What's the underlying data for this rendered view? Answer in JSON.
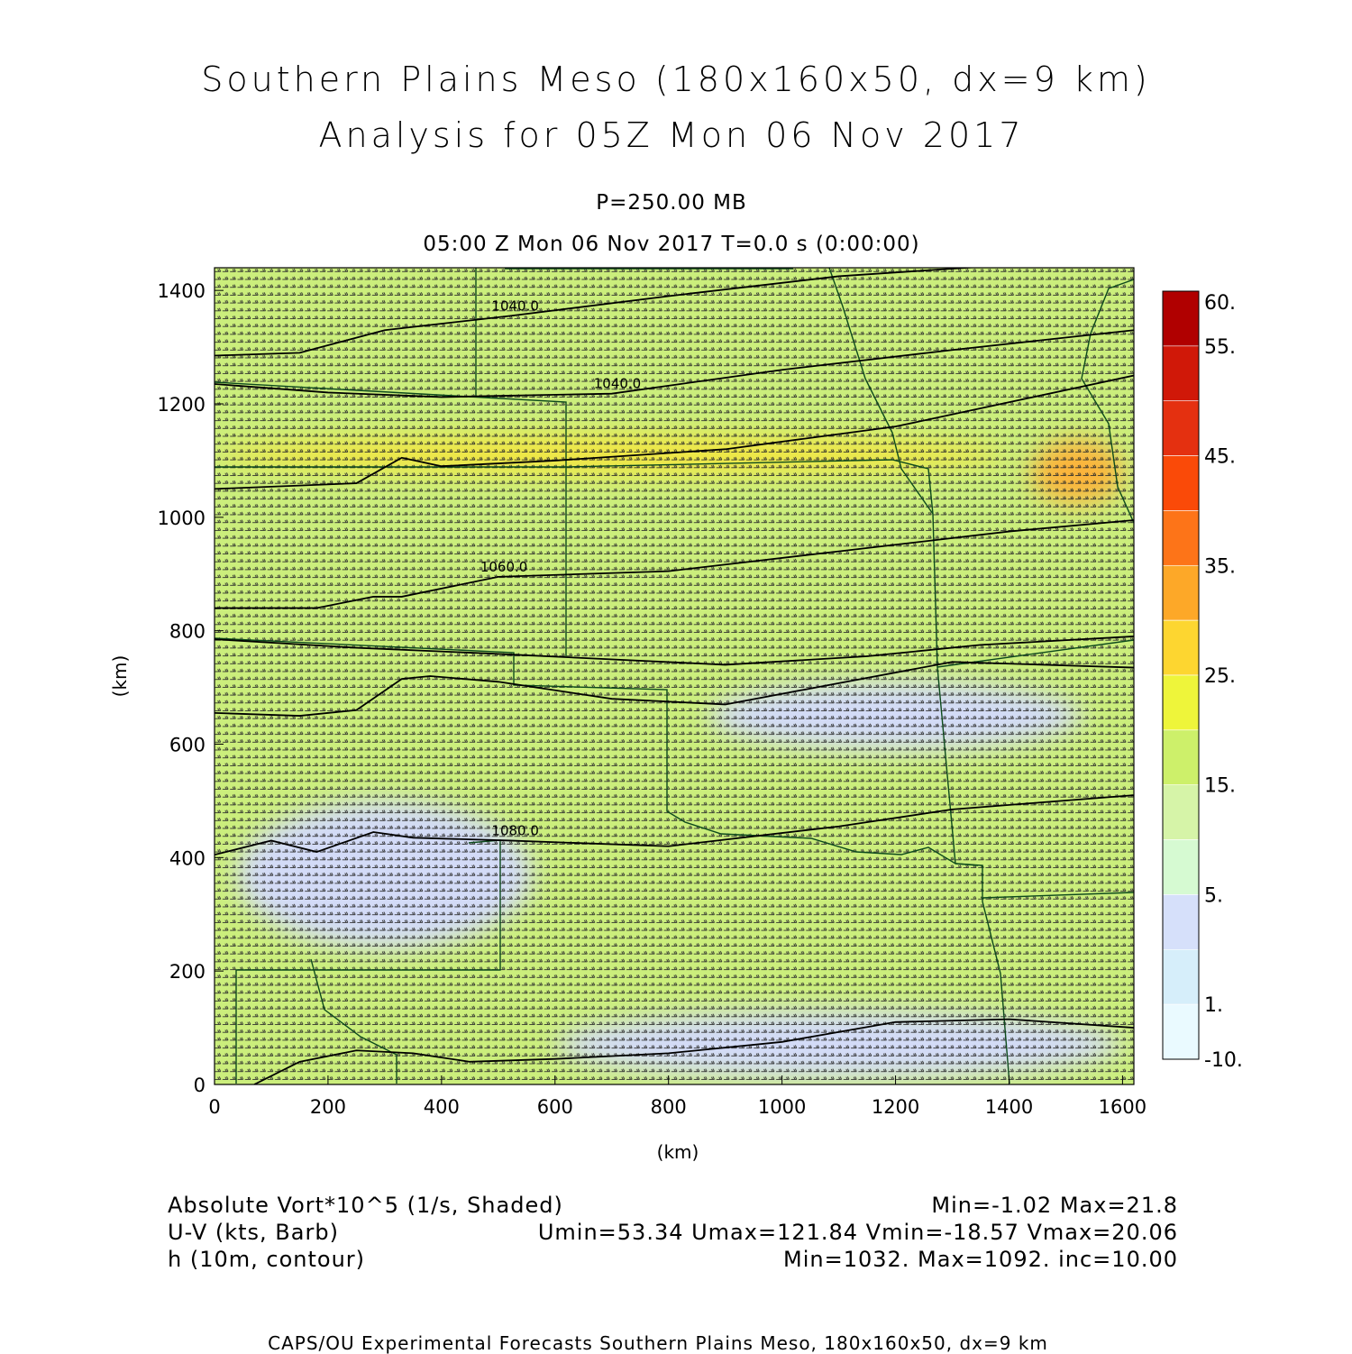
{
  "header": {
    "title_line1": "Southern Plains Meso (180x160x50, dx=9 km)",
    "title_line2": "Analysis for 05Z Mon 06 Nov 2017",
    "pressure": "P=250.00 MB",
    "valid_time": "05:00 Z Mon 06 Nov 2017    T=0.0 s (0:00:00)"
  },
  "chart_data": {
    "type": "heatmap",
    "xlabel": "(km)",
    "ylabel": "(km)",
    "xlim": [
      0,
      1620
    ],
    "ylim": [
      0,
      1440
    ],
    "x_ticks": [
      "0",
      "200",
      "400",
      "600",
      "800",
      "1000",
      "1200",
      "1400",
      "1600"
    ],
    "y_ticks": [
      "0",
      "200",
      "400",
      "600",
      "800",
      "1000",
      "1200",
      "1400"
    ],
    "colorbar": {
      "labels": [
        "60.",
        "55.",
        "45.",
        "35.",
        "25.",
        "15.",
        "5.",
        "1.",
        "-10."
      ],
      "colors": [
        "#b00000",
        "#d01808",
        "#e43010",
        "#fa4a08",
        "#fd7418",
        "#fda828",
        "#fdd630",
        "#eef53a",
        "#cdf06a",
        "#d6f4a8",
        "#d6fad2",
        "#d6e0fa",
        "#d6eefa",
        "#eafaff"
      ]
    },
    "height_contours": [
      {
        "label": "1040.0",
        "points": [
          [
            0,
            1285
          ],
          [
            150,
            1290
          ],
          [
            300,
            1330
          ],
          [
            520,
            1355
          ],
          [
            800,
            1390
          ],
          [
            1100,
            1425
          ],
          [
            1400,
            1445
          ]
        ]
      },
      {
        "label": "1040.0",
        "points": [
          [
            0,
            1235
          ],
          [
            200,
            1220
          ],
          [
            400,
            1212
          ],
          [
            700,
            1218
          ],
          [
            1000,
            1260
          ],
          [
            1300,
            1295
          ],
          [
            1620,
            1330
          ]
        ]
      },
      {
        "label": "",
        "points": [
          [
            0,
            1050
          ],
          [
            250,
            1060
          ],
          [
            330,
            1105
          ],
          [
            400,
            1090
          ],
          [
            600,
            1100
          ],
          [
            900,
            1120
          ],
          [
            1200,
            1160
          ],
          [
            1620,
            1250
          ]
        ]
      },
      {
        "label": "1060.0",
        "points": [
          [
            0,
            840
          ],
          [
            180,
            840
          ],
          [
            280,
            860
          ],
          [
            330,
            860
          ],
          [
            500,
            895
          ],
          [
            800,
            905
          ],
          [
            1100,
            940
          ],
          [
            1400,
            975
          ],
          [
            1620,
            995
          ]
        ]
      },
      {
        "label": "",
        "points": [
          [
            0,
            785
          ],
          [
            250,
            770
          ],
          [
            480,
            760
          ],
          [
            900,
            740
          ],
          [
            1150,
            755
          ],
          [
            1350,
            775
          ],
          [
            1620,
            790
          ]
        ]
      },
      {
        "label": "",
        "points": [
          [
            0,
            655
          ],
          [
            150,
            650
          ],
          [
            250,
            660
          ],
          [
            330,
            715
          ],
          [
            380,
            720
          ],
          [
            500,
            710
          ],
          [
            700,
            680
          ],
          [
            900,
            670
          ],
          [
            1300,
            745
          ],
          [
            1620,
            735
          ]
        ]
      },
      {
        "label": "1080.0",
        "points": [
          [
            0,
            405
          ],
          [
            100,
            430
          ],
          [
            180,
            410
          ],
          [
            280,
            445
          ],
          [
            350,
            435
          ],
          [
            520,
            430
          ],
          [
            800,
            420
          ],
          [
            1100,
            455
          ],
          [
            1300,
            485
          ],
          [
            1620,
            510
          ]
        ]
      },
      {
        "label": "",
        "points": [
          [
            70,
            0
          ],
          [
            150,
            40
          ],
          [
            250,
            60
          ],
          [
            350,
            55
          ],
          [
            450,
            40
          ],
          [
            600,
            45
          ],
          [
            800,
            55
          ],
          [
            1000,
            75
          ],
          [
            1200,
            110
          ],
          [
            1400,
            115
          ],
          [
            1620,
            100
          ]
        ]
      }
    ],
    "vorticity_regions": [
      {
        "level": "yellow",
        "cx": 700,
        "cy": 1110,
        "rx": 700,
        "ry": 35
      },
      {
        "level": "orange",
        "cx": 1520,
        "cy": 1080,
        "rx": 80,
        "ry": 55
      },
      {
        "level": "blue",
        "cx": 300,
        "cy": 370,
        "rx": 260,
        "ry": 130
      },
      {
        "level": "blue",
        "cx": 1200,
        "cy": 650,
        "rx": 330,
        "ry": 60
      },
      {
        "level": "blue",
        "cx": 1100,
        "cy": 70,
        "rx": 500,
        "ry": 60
      }
    ]
  },
  "footer": {
    "vort_label": "Absolute Vort*10^5 (1/s, Shaded)",
    "vort_stats": "Min=-1.02  Max=21.8",
    "wind_label": "U-V (kts, Barb)",
    "wind_stats": "Umin=53.34  Umax=121.84  Vmin=-18.57  Vmax=20.06",
    "height_label": "h (10m, contour)",
    "height_stats": "Min=1032.  Max=1092.  inc=10.00",
    "credit": "CAPS/OU Experimental Forecasts  Southern Plains Meso, 180x160x50, dx=9 km"
  }
}
